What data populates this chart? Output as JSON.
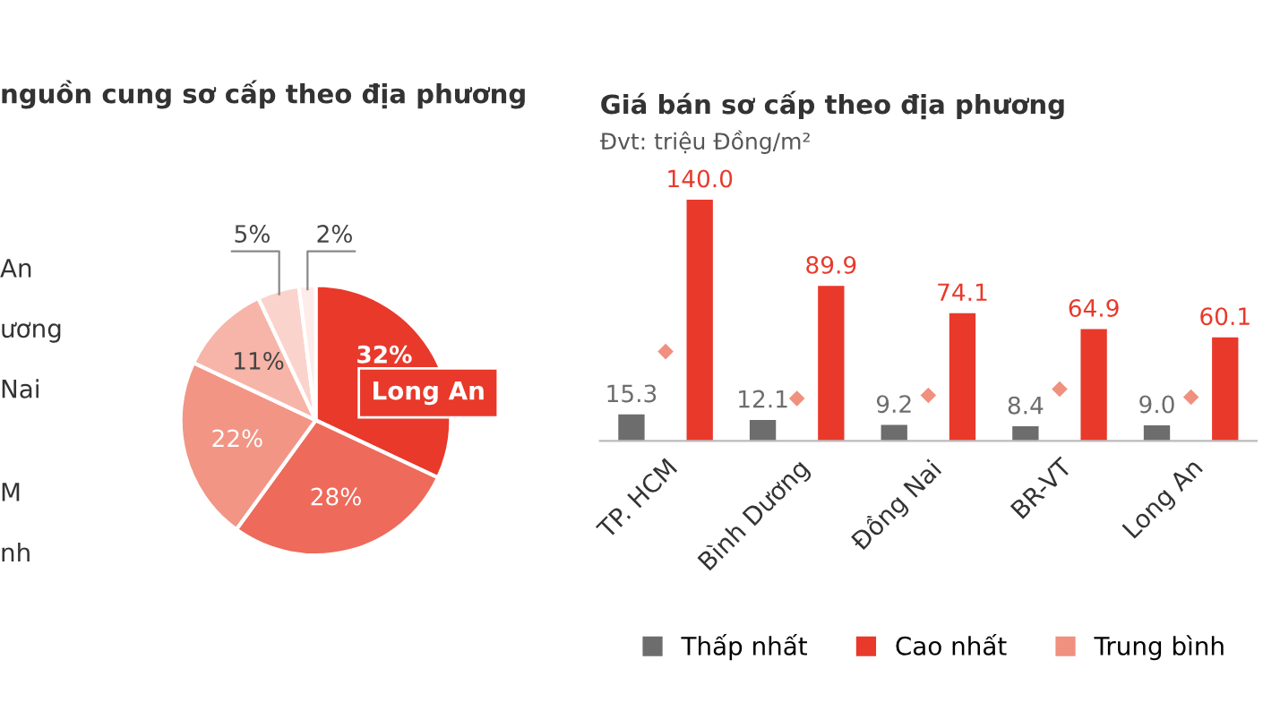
{
  "chart_data": [
    {
      "type": "pie",
      "title": "nguồn cung sơ cấp theo địa phương",
      "categories": [
        "Long An",
        null,
        null,
        null,
        null,
        null
      ],
      "values": [
        32,
        28,
        22,
        11,
        5,
        2
      ],
      "colors": [
        "#e8392b",
        "#ee6a5b",
        "#f29585",
        "#f6b5a8",
        "#fad4cc",
        "#fdecea"
      ],
      "value_labels": [
        "32%",
        "28%",
        "22%",
        "11%",
        "5%",
        "2%"
      ],
      "annotations": [
        "An",
        "ương",
        "Nai",
        "M",
        "nh"
      ]
    },
    {
      "type": "bar",
      "title": "Giá bán sơ cấp theo địa phương",
      "subtitle": "Đvt: triệu Đồng/m²",
      "categories": [
        "TP. HCM",
        "Bình Dương",
        "Đồng Nai",
        "BR-VT",
        "Long An"
      ],
      "series": [
        {
          "name": "Thấp nhất",
          "color": "#6d6d6d",
          "values": [
            15.3,
            12.1,
            9.2,
            8.4,
            9.0
          ],
          "value_labels": [
            "15.3",
            "12.1",
            "9.2",
            "8.4",
            "9.0"
          ]
        },
        {
          "name": "Cao nhất",
          "color": "#e8392b",
          "values": [
            140.0,
            89.9,
            74.1,
            64.9,
            60.1
          ],
          "value_labels": [
            "140.0",
            "89.9",
            "74.1",
            "64.9",
            "60.1"
          ]
        },
        {
          "name": "Trung bình",
          "type": "scatter",
          "marker": "diamond",
          "color": "#f0907f",
          "values": [
            51.8,
            24.6,
            26.4,
            30.0,
            25.3
          ]
        }
      ],
      "legend": "bottom",
      "grid": false
    }
  ]
}
